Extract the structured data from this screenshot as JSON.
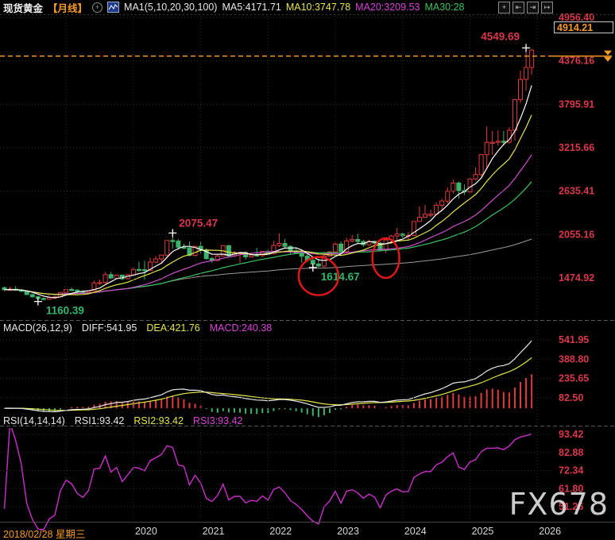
{
  "header": {
    "symbol": "现货黄金",
    "period": "【月线】",
    "ma_group": "MA1(5,10,20,30,100)",
    "ma5": "MA5:4171.71",
    "ma10": "MA10:3747.78",
    "ma20": "MA20:3209.53",
    "ma30": "MA30:28"
  },
  "toolbar": {
    "pan_glyph": "+",
    "axis_compress_glyph": "⇤",
    "axis_expand_glyph": "⇥",
    "shift_right_glyph": "↦",
    "add_indicator_glyph": "+"
  },
  "price_box": {
    "value": "4914.21"
  },
  "macd_header": {
    "name": "MACD(26,12,9)",
    "diff": "DIFF:541.95",
    "dea": "DEA:421.76",
    "macd": "MACD:240.38"
  },
  "rsi_header": {
    "name": "RSI(14,14,14)",
    "rsi1": "RSI1:93.42",
    "rsi2": "RSI2:93.42",
    "rsi3": "RSI3:93.42"
  },
  "footer": {
    "date": "2018/02/28 星期三",
    "years": [
      "2020",
      "2021",
      "2022",
      "2023",
      "2024",
      "2025",
      "2026"
    ]
  },
  "watermark": "FX678",
  "palette": {
    "up": "#e23b3b",
    "down": "#3db26b",
    "axis_red": "#d9384a",
    "orange": "#f59a23",
    "green_label": "#30b86e",
    "ma5": "#ffffff",
    "ma10": "#e6e64a",
    "ma20": "#cf4fcf",
    "ma30": "#3cc25e",
    "ma100": "#9a9a9a",
    "diff": "#e8e8e8",
    "dea": "#e6e64a",
    "rsi": "#cc2fcc",
    "grid": "#303036",
    "divider": "#55555a",
    "cross": "#ffffff",
    "circle": "#e01818"
  },
  "chart_data": {
    "type": "candlestick+macd+rsi",
    "title": "现货黄金 月线 (Spot Gold, monthly)",
    "price_ticks": [
      4956.4,
      4376.16,
      3795.91,
      3215.66,
      2635.41,
      2055.16,
      1474.92
    ],
    "latest_price": 4914.21,
    "dashed_price_line": 4440,
    "macd_ticks": [
      541.95,
      388.8,
      235.65,
      82.5
    ],
    "rsi_ticks": [
      93.42,
      82.88,
      72.34,
      61.8,
      51.26
    ],
    "annotations": [
      {
        "month": "2018-08",
        "price": 1160.39,
        "type": "low",
        "label": "1160.39"
      },
      {
        "month": "2020-08",
        "price": 2075.47,
        "type": "high",
        "label": "2075.47"
      },
      {
        "month": "2022-09",
        "price": 1614.67,
        "type": "low",
        "label": "1614.67"
      },
      {
        "month": "2025-11",
        "price": 4549.69,
        "type": "high",
        "label": "4549.69"
      }
    ],
    "circles": [
      {
        "month": "2022-10",
        "price": 1500,
        "rx": 25,
        "ry": 24
      },
      {
        "month": "2023-10",
        "price": 1740,
        "rx": 17,
        "ry": 25
      }
    ],
    "months": [
      [
        "2018-02",
        1345,
        1361,
        1302,
        1318
      ],
      [
        "2018-03",
        1318,
        1357,
        1303,
        1325
      ],
      [
        "2018-04",
        1325,
        1365,
        1301,
        1315
      ],
      [
        "2018-05",
        1315,
        1326,
        1282,
        1298
      ],
      [
        "2018-06",
        1298,
        1309,
        1247,
        1253
      ],
      [
        "2018-07",
        1253,
        1266,
        1211,
        1224
      ],
      [
        "2018-08",
        1224,
        1235,
        1160.39,
        1201
      ],
      [
        "2018-09",
        1201,
        1214,
        1181,
        1192
      ],
      [
        "2018-10",
        1192,
        1243,
        1180,
        1215
      ],
      [
        "2018-11",
        1215,
        1238,
        1195,
        1222
      ],
      [
        "2018-12",
        1222,
        1285,
        1217,
        1282
      ],
      [
        "2019-01",
        1282,
        1326,
        1276,
        1321
      ],
      [
        "2019-02",
        1321,
        1347,
        1302,
        1313
      ],
      [
        "2019-03",
        1313,
        1324,
        1280,
        1292
      ],
      [
        "2019-04",
        1292,
        1310,
        1266,
        1283
      ],
      [
        "2019-05",
        1283,
        1307,
        1266,
        1305
      ],
      [
        "2019-06",
        1305,
        1439,
        1305,
        1409
      ],
      [
        "2019-07",
        1409,
        1453,
        1382,
        1414
      ],
      [
        "2019-08",
        1414,
        1555,
        1400,
        1520
      ],
      [
        "2019-09",
        1520,
        1557,
        1459,
        1472
      ],
      [
        "2019-10",
        1472,
        1518,
        1458,
        1513
      ],
      [
        "2019-11",
        1513,
        1515,
        1445,
        1464
      ],
      [
        "2019-12",
        1464,
        1525,
        1458,
        1517
      ],
      [
        "2020-01",
        1517,
        1611,
        1517,
        1589
      ],
      [
        "2020-02",
        1589,
        1689,
        1563,
        1586
      ],
      [
        "2020-03",
        1586,
        1703,
        1451,
        1577
      ],
      [
        "2020-04",
        1577,
        1747,
        1568,
        1687
      ],
      [
        "2020-05",
        1687,
        1765,
        1670,
        1730
      ],
      [
        "2020-06",
        1730,
        1786,
        1670,
        1781
      ],
      [
        "2020-07",
        1781,
        1981,
        1757,
        1976
      ],
      [
        "2020-08",
        1976,
        2075.47,
        1863,
        1968
      ],
      [
        "2020-09",
        1968,
        1993,
        1849,
        1886
      ],
      [
        "2020-10",
        1886,
        1933,
        1860,
        1879
      ],
      [
        "2020-11",
        1879,
        1965,
        1764,
        1777
      ],
      [
        "2020-12",
        1777,
        1906,
        1764,
        1898
      ],
      [
        "2021-01",
        1898,
        1959,
        1803,
        1848
      ],
      [
        "2021-02",
        1848,
        1871,
        1717,
        1734
      ],
      [
        "2021-03",
        1734,
        1755,
        1677,
        1708
      ],
      [
        "2021-04",
        1708,
        1798,
        1706,
        1769
      ],
      [
        "2021-05",
        1769,
        1912,
        1765,
        1907
      ],
      [
        "2021-06",
        1907,
        1916,
        1750,
        1770
      ],
      [
        "2021-07",
        1770,
        1834,
        1750,
        1814
      ],
      [
        "2021-08",
        1814,
        1823,
        1677,
        1814
      ],
      [
        "2021-09",
        1814,
        1834,
        1721,
        1757
      ],
      [
        "2021-10",
        1757,
        1813,
        1746,
        1783
      ],
      [
        "2021-11",
        1783,
        1877,
        1759,
        1775
      ],
      [
        "2021-12",
        1775,
        1831,
        1753,
        1829
      ],
      [
        "2022-01",
        1829,
        1853,
        1780,
        1797
      ],
      [
        "2022-02",
        1797,
        1974,
        1788,
        1909
      ],
      [
        "2022-03",
        1909,
        2070,
        1890,
        1937
      ],
      [
        "2022-04",
        1937,
        1998,
        1872,
        1897
      ],
      [
        "2022-05",
        1897,
        1910,
        1786,
        1837
      ],
      [
        "2022-06",
        1837,
        1879,
        1805,
        1807
      ],
      [
        "2022-07",
        1807,
        1814,
        1681,
        1766
      ],
      [
        "2022-08",
        1766,
        1808,
        1688,
        1711
      ],
      [
        "2022-09",
        1711,
        1735,
        1614.67,
        1661
      ],
      [
        "2022-10",
        1661,
        1730,
        1617,
        1634
      ],
      [
        "2022-11",
        1634,
        1787,
        1616,
        1769
      ],
      [
        "2022-12",
        1769,
        1833,
        1765,
        1824
      ],
      [
        "2023-01",
        1824,
        1949,
        1823,
        1928
      ],
      [
        "2023-02",
        1928,
        1960,
        1805,
        1827
      ],
      [
        "2023-03",
        1827,
        2010,
        1809,
        1969
      ],
      [
        "2023-04",
        1969,
        2049,
        1949,
        1990
      ],
      [
        "2023-05",
        1990,
        2067,
        1932,
        1963
      ],
      [
        "2023-06",
        1963,
        1983,
        1893,
        1919
      ],
      [
        "2023-07",
        1919,
        1987,
        1902,
        1965
      ],
      [
        "2023-08",
        1965,
        1972,
        1885,
        1940
      ],
      [
        "2023-09",
        1940,
        1953,
        1848,
        1849
      ],
      [
        "2023-10",
        1849,
        2009,
        1810,
        1984
      ],
      [
        "2023-11",
        1984,
        2052,
        1931,
        2036
      ],
      [
        "2023-12",
        2036,
        2146,
        1973,
        2063
      ],
      [
        "2024-01",
        2063,
        2078,
        2002,
        2040
      ],
      [
        "2024-02",
        2040,
        2088,
        1984,
        2044
      ],
      [
        "2024-03",
        2044,
        2236,
        2039,
        2230
      ],
      [
        "2024-04",
        2230,
        2431,
        2228,
        2286
      ],
      [
        "2024-05",
        2286,
        2450,
        2277,
        2327
      ],
      [
        "2024-06",
        2327,
        2387,
        2287,
        2327
      ],
      [
        "2024-07",
        2327,
        2483,
        2319,
        2448
      ],
      [
        "2024-08",
        2448,
        2531,
        2365,
        2503
      ],
      [
        "2024-09",
        2503,
        2685,
        2472,
        2635
      ],
      [
        "2024-10",
        2635,
        2790,
        2603,
        2744
      ],
      [
        "2024-11",
        2744,
        2762,
        2536,
        2643
      ],
      [
        "2024-12",
        2643,
        2726,
        2583,
        2625
      ],
      [
        "2025-01",
        2625,
        2817,
        2614,
        2798
      ],
      [
        "2025-02",
        2798,
        2956,
        2780,
        2858
      ],
      [
        "2025-03",
        2858,
        3128,
        2832,
        3124
      ],
      [
        "2025-04",
        3124,
        3500,
        2956,
        3289
      ],
      [
        "2025-05",
        3289,
        3438,
        3120,
        3289
      ],
      [
        "2025-06",
        3289,
        3452,
        3245,
        3303
      ],
      [
        "2025-07",
        3303,
        3439,
        3247,
        3290
      ],
      [
        "2025-08",
        3290,
        3489,
        3268,
        3448
      ],
      [
        "2025-09",
        3448,
        3871,
        3311,
        3859
      ],
      [
        "2025-10",
        3859,
        4245,
        3815,
        4129
      ],
      [
        "2025-11",
        4129,
        4549.69,
        3980,
        4288
      ],
      [
        "2025-12",
        4288,
        4535,
        4190,
        4520
      ]
    ]
  }
}
